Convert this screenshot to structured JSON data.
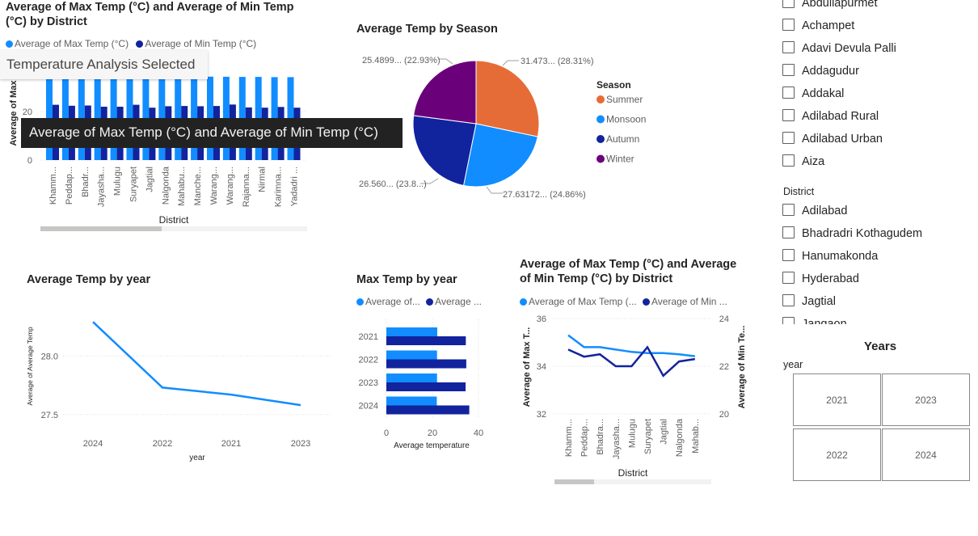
{
  "visual1": {
    "title": "Average of Max Temp (°C) and Average of Min Temp (°C) by District",
    "legend": [
      "Average of Max Temp (°C)",
      "Average of Min Temp (°C)"
    ],
    "xlabel": "District",
    "ylabel": "Average of Max",
    "yticks": [
      "20",
      "0"
    ]
  },
  "tooltip_light": "Temperature Analysis Selected",
  "tooltip_dark": "Average of Max Temp (°C) and Average of Min Temp (°C)",
  "visual2": {
    "title": "Average Temp by Season",
    "legend_title": "Season",
    "labels": [
      "31.473... (28.31%)",
      "27.63172... (24.86%)",
      "26.560... (23.8...)",
      "25.4899... (22.93%)"
    ]
  },
  "visual3": {
    "title": "Average Temp by year",
    "xlabel": "year",
    "ylabel": "Average of Average Temp",
    "yticks": [
      "28.0",
      "27.5"
    ]
  },
  "visual4": {
    "title": "Max Temp by year",
    "legend": [
      "Average of...",
      "Average ..."
    ],
    "xlabel": "Average temperature",
    "xticks": [
      "0",
      "20",
      "40"
    ]
  },
  "visual5": {
    "title": "Average of Max Temp (°C) and Average of Min Temp (°C) by District",
    "legend": [
      "Average of Max Temp (...",
      "Average of Min ..."
    ],
    "xlabel": "District",
    "ylabel_left": "Average of Max T...",
    "ylabel_right": "Average of Min Te...",
    "yticks_left": [
      "36",
      "34",
      "32"
    ],
    "yticks_right": [
      "24",
      "22",
      "20"
    ]
  },
  "slicer_mandal": {
    "items": [
      "Abdullapurmet",
      "Achampet",
      "Adavi Devula Palli",
      "Addagudur",
      "Addakal",
      "Adilabad Rural",
      "Adilabad Urban",
      "Aiza"
    ]
  },
  "slicer_district": {
    "header": "District",
    "items": [
      "Adilabad",
      "Bhadradri Kothagudem",
      "Hanumakonda",
      "Hyderabad",
      "Jagtial",
      "Jangaon"
    ]
  },
  "years_slicer": {
    "title": "Years",
    "header": "year",
    "tiles": [
      "2021",
      "2023",
      "2022",
      "2024"
    ]
  },
  "colors": {
    "max": "#118dff",
    "min": "#12239e",
    "summer": "#e66c37",
    "monsoon": "#118dff",
    "autumn": "#12239e",
    "winter": "#6b007b"
  },
  "chart_data": [
    {
      "type": "bar",
      "title": "Average of Max Temp (°C) and Average of Min Temp (°C) by District",
      "xlabel": "District",
      "ylabel": "Average of Max",
      "categories": [
        "Khamm...",
        "Peddap...",
        "Bhadr...",
        "Jayasha...",
        "Mulugu",
        "Suryapet",
        "Jagtial",
        "Nalgonda",
        "Mahabu...",
        "Manche...",
        "Warang...",
        "Warang...",
        "Rajanna...",
        "Nirmal",
        "Karimna...",
        "Yadadri ..."
      ],
      "series": [
        {
          "name": "Average of Max Temp (°C)",
          "values": [
            35.3,
            34.8,
            34.8,
            34.7,
            34.6,
            34.55,
            34.5,
            34.45,
            34.45,
            34.4,
            34.4,
            34.35,
            34.3,
            34.3,
            34.2,
            34.2
          ]
        },
        {
          "name": "Average of Min Temp (°C)",
          "values": [
            22.8,
            22.4,
            22.5,
            22.0,
            22.0,
            22.8,
            21.6,
            22.2,
            22.3,
            22.2,
            22.3,
            22.9,
            21.7,
            21.6,
            21.9,
            21.6
          ]
        }
      ],
      "ylim": [
        0,
        40
      ]
    },
    {
      "type": "pie",
      "title": "Average Temp by Season",
      "labels": [
        "Summer",
        "Monsoon",
        "Autumn",
        "Winter"
      ],
      "values": [
        31.473,
        27.63172,
        26.56,
        25.4899
      ],
      "percent": [
        28.31,
        24.86,
        23.89,
        22.93
      ]
    },
    {
      "type": "line",
      "title": "Average Temp by year",
      "xlabel": "year",
      "ylabel": "Average of Average Temp",
      "categories": [
        "2024",
        "2022",
        "2021",
        "2023"
      ],
      "values": [
        28.29,
        27.73,
        27.67,
        27.58
      ],
      "ylim": [
        27.45,
        28.45
      ]
    },
    {
      "type": "bar",
      "title": "Max Temp by year",
      "xlabel": "Average temperature",
      "categories": [
        "2021",
        "2022",
        "2023",
        "2024"
      ],
      "series": [
        {
          "values": [
            22.1,
            22.0,
            22.0,
            21.9
          ]
        },
        {
          "values": [
            34.5,
            34.7,
            34.4,
            36.0
          ]
        }
      ],
      "xlim": [
        0,
        40
      ]
    },
    {
      "type": "line",
      "title": "Average of Max Temp (°C) and Average of Min Temp (°C) by District",
      "xlabel": "District",
      "categories": [
        "Khamm...",
        "Peddap...",
        "Bhadra...",
        "Jayasha...",
        "Mulugu",
        "Suryapet",
        "Jagtial",
        "Nalgonda",
        "Mahab..."
      ],
      "series": [
        {
          "name": "Average of Max Temp (°C)",
          "axis": "left",
          "values": [
            35.3,
            34.8,
            34.8,
            34.7,
            34.6,
            34.55,
            34.55,
            34.5,
            34.42
          ]
        },
        {
          "name": "Average of Min Temp (°C)",
          "axis": "right",
          "values": [
            22.7,
            22.4,
            22.5,
            22.0,
            22.0,
            22.8,
            21.6,
            22.2,
            22.3
          ]
        }
      ],
      "ylim_left": [
        32,
        36
      ],
      "ylim_right": [
        20,
        24
      ]
    }
  ]
}
